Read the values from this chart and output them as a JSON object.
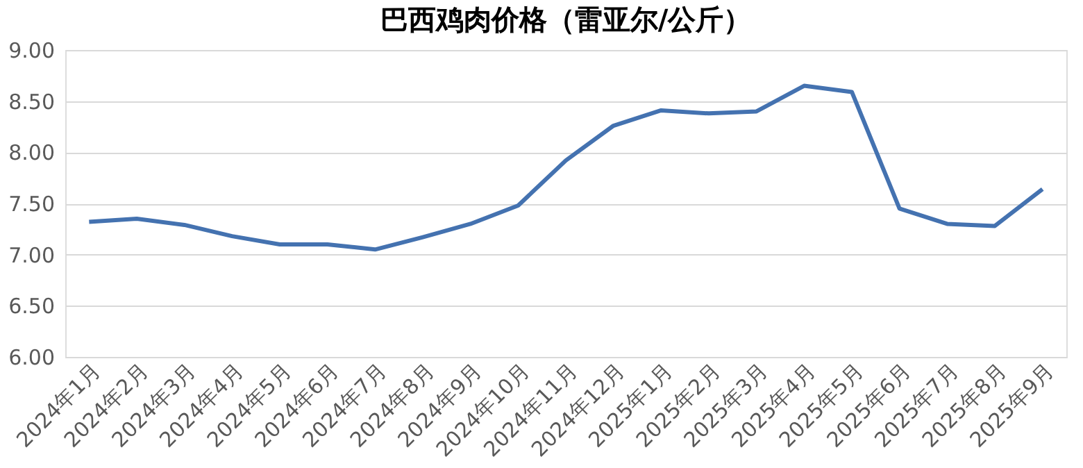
{
  "chart_data": {
    "type": "line",
    "title": "巴西鸡肉价格（雷亚尔/公斤）",
    "categories": [
      "2024年1月",
      "2024年2月",
      "2024年3月",
      "2024年4月",
      "2024年5月",
      "2024年6月",
      "2024年7月",
      "2024年8月",
      "2024年9月",
      "2024年10月",
      "2024年11月",
      "2024年12月",
      "2025年1月",
      "2025年2月",
      "2025年3月",
      "2025年4月",
      "2025年5月",
      "2025年6月",
      "2025年7月",
      "2025年8月",
      "2025年9月"
    ],
    "series": [
      {
        "color": "#4472b0",
        "values": [
          7.32,
          7.35,
          7.29,
          7.18,
          7.1,
          7.1,
          7.05,
          7.17,
          7.3,
          7.48,
          7.92,
          8.26,
          8.41,
          8.38,
          8.4,
          8.65,
          8.59,
          7.45,
          7.3,
          7.28,
          7.64
        ]
      }
    ],
    "ylim": [
      6.0,
      9.0
    ],
    "yticks": [
      {
        "value": 6.0,
        "label": "6.00"
      },
      {
        "value": 6.5,
        "label": "6.50"
      },
      {
        "value": 7.0,
        "label": "7.00"
      },
      {
        "value": 7.5,
        "label": "7.50"
      },
      {
        "value": 8.0,
        "label": "8.00"
      },
      {
        "value": 8.5,
        "label": "8.50"
      },
      {
        "value": 9.0,
        "label": "9.00"
      }
    ],
    "grid": "y",
    "marker": "none",
    "line_style": "solid"
  }
}
